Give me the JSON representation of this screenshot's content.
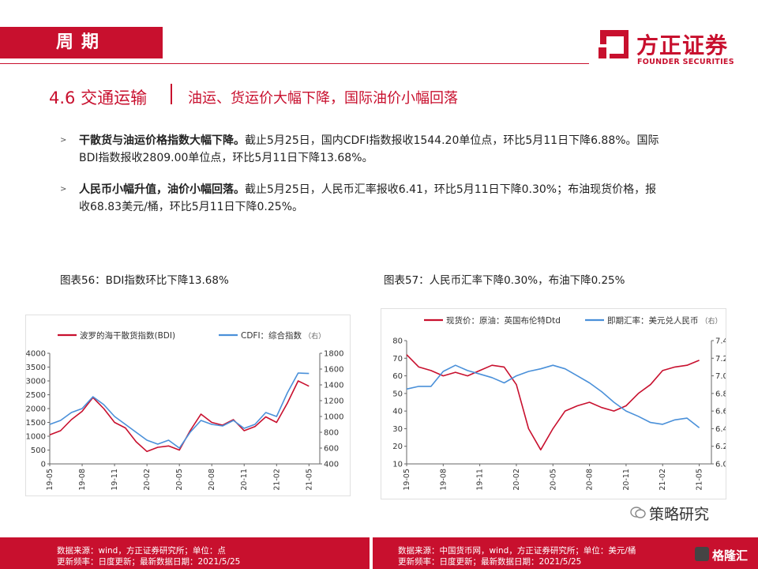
{
  "header": {
    "section_label": "周期",
    "logo_cn": "方正证券",
    "logo_en": "FOUNDER SECURITIES"
  },
  "title": {
    "number": "4.6 交通运输",
    "subtitle": "油运、货运价大幅下降，国际油价小幅回落"
  },
  "bullets": [
    {
      "bold": "干散货与油运价格指数大幅下降。",
      "text": "截止5月25日，国内CDFI指数报收1544.20单位点，环比5月11日下降6.88%。国际BDI指数报收2809.00单位点，环比5月11日下降13.68%。"
    },
    {
      "bold": "人民币小幅升值，油价小幅回落。",
      "text": "截止5月25日，人民币汇率报收6.41，环比5月11日下降0.30%；布油现货价格，报收68.83美元/桶，环比5月11日下降0.25%。"
    }
  ],
  "figures": [
    {
      "caption": "图表56：BDI指数环比下降13.68%"
    },
    {
      "caption": "图表57：人民币汇率下降0.30%，布油下降0.25%"
    }
  ],
  "footer": {
    "left_line1": "数据来源：wind，方正证券研究所；单位：点",
    "left_line2": "更新频率：日度更新；最新数据日期：2021/5/25",
    "right_line1": "数据来源：中国货币网，wind，方正证券研究所；单位：美元/桶",
    "right_line2": "更新频率：日度更新；最新数据日期：2021/5/25",
    "watermark1": "策略研究",
    "watermark2": "格隆汇"
  },
  "chart_data": [
    {
      "type": "line",
      "legend_position": "top",
      "grid": false,
      "x_tick_labels": [
        "19-05",
        "19-08",
        "19-11",
        "20-02",
        "20-05",
        "20-08",
        "20-11",
        "21-02",
        "21-05"
      ],
      "xlim": [
        "2019-05",
        "2021-06"
      ],
      "ylim": [
        0,
        4000
      ],
      "y_ticks": [
        0,
        500,
        1000,
        1500,
        2000,
        2500,
        3000,
        3500,
        4000
      ],
      "y2lim": [
        400,
        1800
      ],
      "y2_ticks": [
        400,
        600,
        800,
        1000,
        1200,
        1400,
        1600,
        1800
      ],
      "series": [
        {
          "name": "波罗的海干散货指数(BDI)",
          "axis": "left",
          "color": "#c8102e",
          "x": [
            "2019-05",
            "2019-06",
            "2019-07",
            "2019-08",
            "2019-09",
            "2019-10",
            "2019-11",
            "2019-12",
            "2020-01",
            "2020-02",
            "2020-03",
            "2020-04",
            "2020-05",
            "2020-06",
            "2020-07",
            "2020-08",
            "2020-09",
            "2020-10",
            "2020-11",
            "2020-12",
            "2021-01",
            "2021-02",
            "2021-03",
            "2021-04",
            "2021-05"
          ],
          "values": [
            1050,
            1200,
            1600,
            1900,
            2400,
            2000,
            1500,
            1300,
            800,
            450,
            600,
            650,
            500,
            1200,
            1800,
            1500,
            1400,
            1600,
            1200,
            1350,
            1700,
            1500,
            2200,
            3000,
            2809
          ]
        },
        {
          "name": "CDFI：综合指数",
          "axis": "right",
          "legend_suffix": "（右）",
          "color": "#4a90d9",
          "x": [
            "2019-05",
            "2019-06",
            "2019-07",
            "2019-08",
            "2019-09",
            "2019-10",
            "2019-11",
            "2019-12",
            "2020-01",
            "2020-02",
            "2020-03",
            "2020-04",
            "2020-05",
            "2020-06",
            "2020-07",
            "2020-08",
            "2020-09",
            "2020-10",
            "2020-11",
            "2020-12",
            "2021-01",
            "2021-02",
            "2021-03",
            "2021-04",
            "2021-05"
          ],
          "values": [
            900,
            950,
            1050,
            1100,
            1250,
            1150,
            1000,
            900,
            800,
            700,
            650,
            700,
            600,
            800,
            950,
            900,
            880,
            950,
            850,
            900,
            1050,
            1000,
            1300,
            1550,
            1544.2
          ]
        }
      ]
    },
    {
      "type": "line",
      "legend_position": "top",
      "grid": false,
      "x_tick_labels": [
        "19-05",
        "19-08",
        "19-11",
        "20-02",
        "20-05",
        "20-08",
        "20-11",
        "21-02",
        "21-05"
      ],
      "xlim": [
        "2019-05",
        "2021-06"
      ],
      "ylim": [
        10,
        80
      ],
      "y_ticks": [
        10,
        20,
        30,
        40,
        50,
        60,
        70,
        80
      ],
      "y2lim": [
        6.0,
        7.4
      ],
      "y2_ticks": [
        6.0,
        6.2,
        6.4,
        6.6,
        6.8,
        7.0,
        7.2,
        7.4
      ],
      "series": [
        {
          "name": "现货价：原油：英国布伦特Dtd",
          "axis": "left",
          "color": "#c8102e",
          "x": [
            "2019-05",
            "2019-06",
            "2019-07",
            "2019-08",
            "2019-09",
            "2019-10",
            "2019-11",
            "2019-12",
            "2020-01",
            "2020-02",
            "2020-03",
            "2020-04",
            "2020-05",
            "2020-06",
            "2020-07",
            "2020-08",
            "2020-09",
            "2020-10",
            "2020-11",
            "2020-12",
            "2021-01",
            "2021-02",
            "2021-03",
            "2021-04",
            "2021-05"
          ],
          "values": [
            72,
            65,
            63,
            60,
            62,
            60,
            63,
            66,
            65,
            55,
            30,
            18,
            30,
            40,
            43,
            45,
            42,
            40,
            43,
            50,
            55,
            63,
            65,
            66,
            68.83
          ]
        },
        {
          "name": "即期汇率：美元兑人民币",
          "axis": "right",
          "legend_suffix": "（右）",
          "color": "#4a90d9",
          "x": [
            "2019-05",
            "2019-06",
            "2019-07",
            "2019-08",
            "2019-09",
            "2019-10",
            "2019-11",
            "2019-12",
            "2020-01",
            "2020-02",
            "2020-03",
            "2020-04",
            "2020-05",
            "2020-06",
            "2020-07",
            "2020-08",
            "2020-09",
            "2020-10",
            "2020-11",
            "2020-12",
            "2021-01",
            "2021-02",
            "2021-03",
            "2021-04",
            "2021-05"
          ],
          "values": [
            6.85,
            6.88,
            6.88,
            7.05,
            7.12,
            7.06,
            7.02,
            6.98,
            6.92,
            7.0,
            7.05,
            7.08,
            7.12,
            7.08,
            7.0,
            6.92,
            6.82,
            6.7,
            6.6,
            6.54,
            6.47,
            6.45,
            6.5,
            6.52,
            6.41
          ]
        }
      ]
    }
  ]
}
